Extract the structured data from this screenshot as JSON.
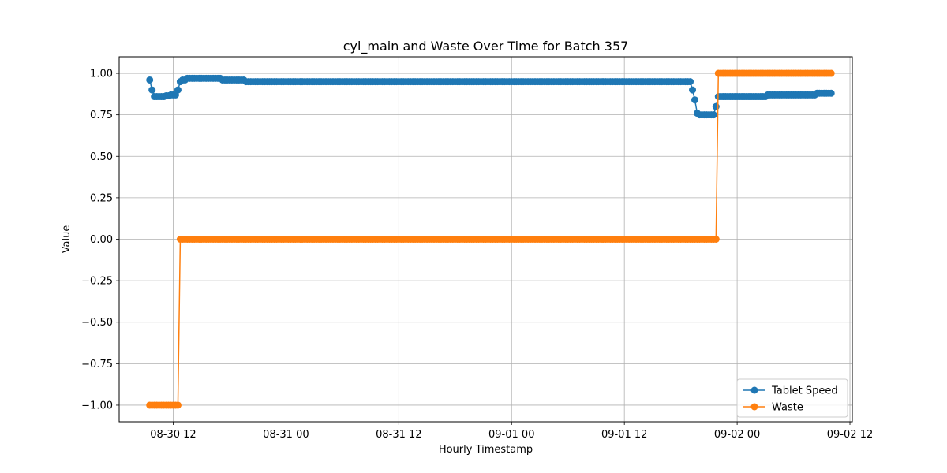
{
  "chart_data": {
    "type": "line",
    "title": "cyl_main and Waste Over Time for Batch 357",
    "xlabel": "Hourly Timestamp",
    "ylabel": "Value",
    "x_ticks": [
      "08-30 12",
      "08-31 00",
      "08-31 12",
      "09-01 00",
      "09-01 12",
      "09-02 00",
      "09-02 12"
    ],
    "y_ticks": [
      "−1.00",
      "−0.75",
      "−0.50",
      "−0.25",
      "0.00",
      "0.25",
      "0.50",
      "0.75",
      "1.00"
    ],
    "xlim_hours": [
      -5.75,
      72.25
    ],
    "ylim": [
      -1.1,
      1.1
    ],
    "grid": true,
    "legend_position": "bottom-right",
    "series": [
      {
        "name": "Tablet Speed",
        "color": "#1f77b4",
        "segments": [
          {
            "from": -2.5,
            "to": -2.5,
            "value": 0.96
          },
          {
            "from": -2.25,
            "to": -2.25,
            "value": 0.9
          },
          {
            "from": -2.0,
            "to": -1.0,
            "value": 0.86
          },
          {
            "from": -0.75,
            "to": -0.5,
            "value": 0.865
          },
          {
            "from": -0.25,
            "to": 0.25,
            "value": 0.87
          },
          {
            "from": 0.5,
            "to": 0.5,
            "value": 0.9
          },
          {
            "from": 0.75,
            "to": 0.75,
            "value": 0.95
          },
          {
            "from": 1.0,
            "to": 1.25,
            "value": 0.96
          },
          {
            "from": 1.5,
            "to": 5.0,
            "value": 0.97
          },
          {
            "from": 5.25,
            "to": 7.5,
            "value": 0.96
          },
          {
            "from": 7.75,
            "to": 55.0,
            "value": 0.95
          },
          {
            "from": 55.25,
            "to": 55.25,
            "value": 0.9
          },
          {
            "from": 55.5,
            "to": 55.5,
            "value": 0.84
          },
          {
            "from": 55.75,
            "to": 55.75,
            "value": 0.76
          },
          {
            "from": 56.0,
            "to": 57.5,
            "value": 0.75
          },
          {
            "from": 57.75,
            "to": 57.75,
            "value": 0.8
          },
          {
            "from": 58.0,
            "to": 63.0,
            "value": 0.86
          },
          {
            "from": 63.25,
            "to": 68.25,
            "value": 0.87
          },
          {
            "from": 68.5,
            "to": 70.0,
            "value": 0.88
          }
        ]
      },
      {
        "name": "Waste",
        "color": "#ff7f0e",
        "segments": [
          {
            "from": -2.5,
            "to": 0.5,
            "value": -1.0
          },
          {
            "from": 0.75,
            "to": 57.75,
            "value": 0.0
          },
          {
            "from": 58.0,
            "to": 70.0,
            "value": 1.0
          }
        ]
      }
    ]
  }
}
